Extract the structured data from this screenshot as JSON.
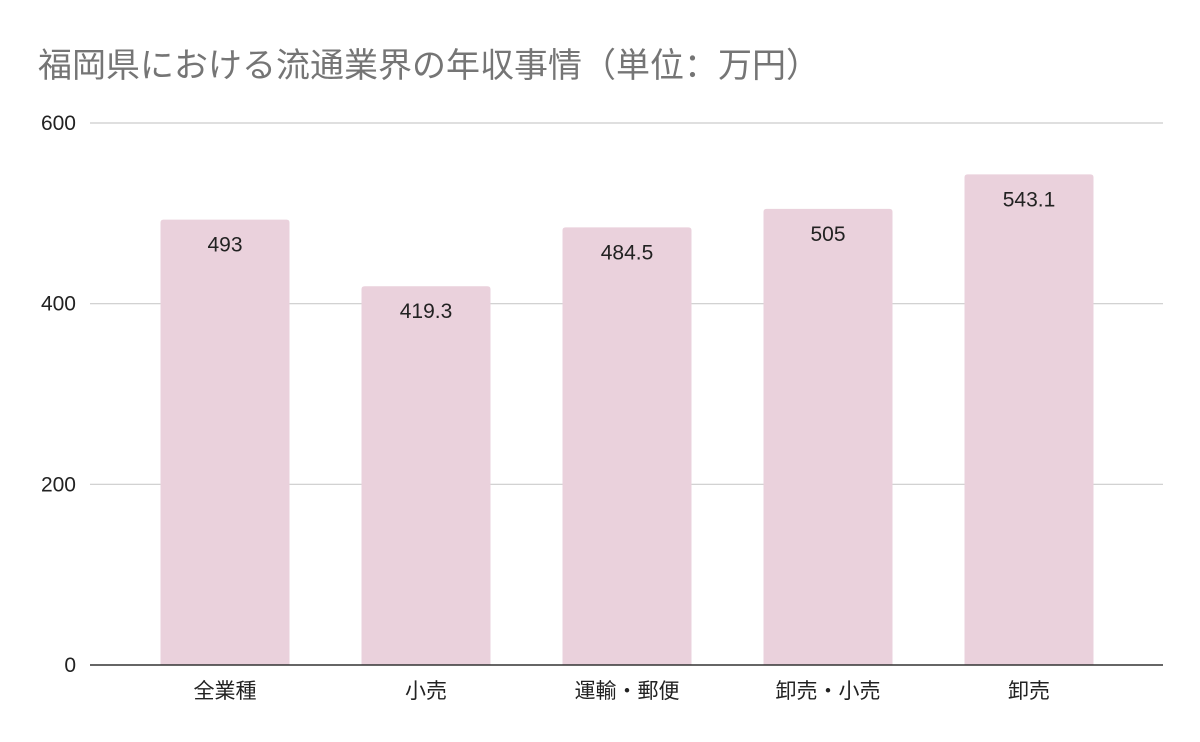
{
  "chart_data": {
    "type": "bar",
    "title": "福岡県における流通業界の年収事情（単位：万円）",
    "xlabel": "",
    "ylabel": "",
    "categories": [
      "全業種",
      "小売",
      "運輸・郵便",
      "卸売・小売",
      "卸売"
    ],
    "values": [
      493,
      419.3,
      484.5,
      505,
      543.1
    ],
    "data_labels": [
      "493",
      "419.3",
      "484.5",
      "505",
      "543.1"
    ],
    "ylim": [
      0,
      600
    ],
    "yticks": [
      0,
      200,
      400,
      600
    ],
    "grid": true,
    "legend": "none",
    "bar_color": "#ead1dc"
  }
}
